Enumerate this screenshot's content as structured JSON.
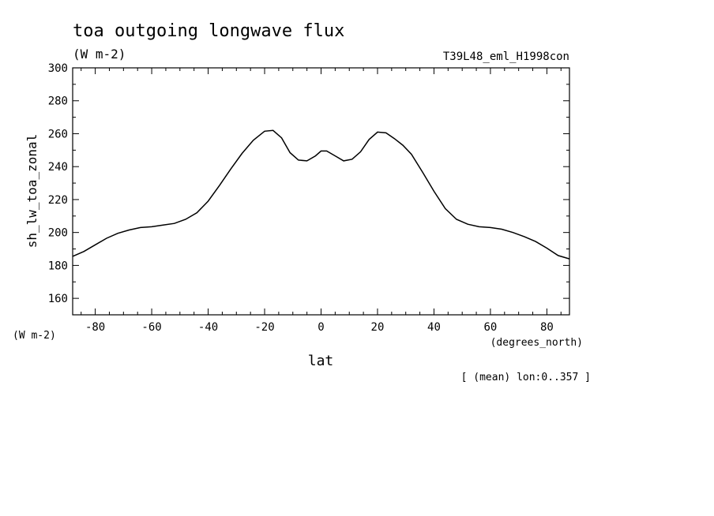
{
  "chart_data": {
    "type": "line",
    "title": "toa outgoing longwave flux",
    "subtitle": "(W m-2)",
    "experiment": "T39L48_eml_H1998con",
    "ylabel": "sh_lw_toa_zonal",
    "yunits": "(W m-2)",
    "xlabel": "lat",
    "xunits": "(degrees_north)",
    "note": "[ (mean) lon:0..357 ]",
    "xlim": [
      -88,
      88
    ],
    "ylim": [
      150,
      300
    ],
    "xticks": [
      -80,
      -60,
      -40,
      -20,
      0,
      20,
      40,
      60,
      80
    ],
    "yticks": [
      160,
      180,
      200,
      220,
      240,
      260,
      280,
      300
    ],
    "grid": false,
    "x": [
      -88,
      -84,
      -80,
      -76,
      -72,
      -68,
      -64,
      -60,
      -56,
      -52,
      -48,
      -44,
      -40,
      -36,
      -32,
      -28,
      -24,
      -20,
      -17,
      -14,
      -11,
      -8,
      -5,
      -2,
      0,
      2,
      5,
      8,
      11,
      14,
      17,
      20,
      23,
      26,
      29,
      32,
      36,
      40,
      44,
      48,
      52,
      56,
      60,
      64,
      68,
      72,
      76,
      80,
      84,
      88
    ],
    "y": [
      185.5,
      188.5,
      192.5,
      196.5,
      199.5,
      201.5,
      203,
      203.5,
      204.5,
      205.5,
      208,
      212,
      219,
      228.5,
      238.5,
      248,
      256,
      261.5,
      262,
      257.5,
      248.5,
      244,
      243.5,
      246.5,
      249.5,
      249.5,
      246.5,
      243.5,
      244.5,
      249,
      256.5,
      261,
      260.5,
      257,
      253,
      247.5,
      236.5,
      225,
      214.5,
      208,
      205,
      203.5,
      203,
      202,
      200,
      197.5,
      194.5,
      190.5,
      186,
      184
    ]
  }
}
